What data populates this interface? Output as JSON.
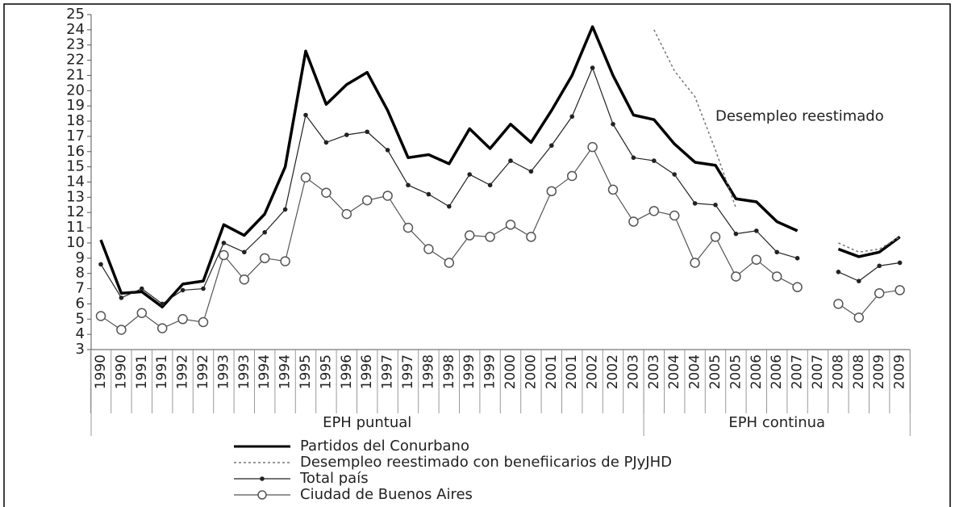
{
  "chart_data": {
    "type": "line",
    "categories": [
      "1990",
      "1990",
      "1991",
      "1991",
      "1992",
      "1992",
      "1993",
      "1993",
      "1994",
      "1994",
      "1995",
      "1995",
      "1996",
      "1996",
      "1997",
      "1997",
      "1998",
      "1998",
      "1999",
      "1999",
      "2000",
      "2000",
      "2001",
      "2001",
      "2002",
      "2002",
      "2003",
      "2003",
      "2004",
      "2004",
      "2005",
      "2005",
      "2006",
      "2006",
      "2007",
      "2007",
      "2008",
      "2008",
      "2009",
      "2009"
    ],
    "groups": [
      {
        "label": "EPH puntual",
        "count": 27
      },
      {
        "label": "EPH continua",
        "count": 13
      }
    ],
    "series": [
      {
        "name": "Partidos del Conurbano",
        "color": "#000000",
        "line_width": 3.5,
        "dashed": false,
        "marker": "none",
        "values": [
          10.2,
          6.7,
          6.8,
          5.8,
          7.3,
          7.5,
          11.2,
          10.5,
          11.9,
          15.0,
          22.6,
          19.1,
          20.4,
          21.2,
          18.7,
          15.6,
          15.8,
          15.2,
          17.5,
          16.2,
          17.8,
          16.6,
          18.7,
          21.0,
          24.2,
          21.0,
          18.4,
          18.1,
          16.5,
          15.3,
          15.1,
          12.9,
          12.7,
          11.4,
          10.8,
          null,
          9.6,
          9.1,
          9.4,
          10.4
        ]
      },
      {
        "name": "Desempleo reestimado con benefiicarios de PJyJHD",
        "color": "#777777",
        "line_width": 1.5,
        "dashed": true,
        "marker": "none",
        "values": [
          null,
          null,
          null,
          null,
          null,
          null,
          null,
          null,
          null,
          null,
          null,
          null,
          null,
          null,
          null,
          null,
          null,
          null,
          null,
          null,
          null,
          null,
          null,
          null,
          null,
          null,
          null,
          24.0,
          21.3,
          19.6,
          16.1,
          12.3,
          null,
          null,
          null,
          null,
          10.0,
          9.4,
          9.6,
          10.4
        ]
      },
      {
        "name": "Total país",
        "color": "#222222",
        "line_width": 1.2,
        "dashed": false,
        "marker": "dot",
        "values": [
          8.6,
          6.4,
          7.0,
          6.0,
          6.9,
          7.0,
          10.0,
          9.4,
          10.7,
          12.2,
          18.4,
          16.6,
          17.1,
          17.3,
          16.1,
          13.8,
          13.2,
          12.4,
          14.5,
          13.8,
          15.4,
          14.7,
          16.4,
          18.3,
          21.5,
          17.8,
          15.6,
          15.4,
          14.5,
          12.6,
          12.5,
          10.6,
          10.8,
          9.4,
          9.0,
          null,
          8.1,
          7.5,
          8.5,
          8.7
        ]
      },
      {
        "name": "Ciudad de Buenos Aires",
        "color": "#555555",
        "line_width": 1.2,
        "dashed": false,
        "marker": "circle",
        "values": [
          5.2,
          4.3,
          5.4,
          4.4,
          5.0,
          4.8,
          9.2,
          7.6,
          9.0,
          8.8,
          14.3,
          13.3,
          11.9,
          12.8,
          13.1,
          11.0,
          9.6,
          8.7,
          10.5,
          10.4,
          11.2,
          10.4,
          13.4,
          14.4,
          16.3,
          13.5,
          11.4,
          12.1,
          11.8,
          8.7,
          10.4,
          7.8,
          8.9,
          7.8,
          7.1,
          null,
          6.0,
          5.1,
          6.7,
          6.9
        ]
      }
    ],
    "annotations": [
      {
        "text": "Desempleo reestimado",
        "x": 30,
        "y": 18.3
      }
    ],
    "ylim": [
      3,
      25
    ],
    "yticks": [
      3,
      4,
      5,
      6,
      7,
      8,
      9,
      10,
      11,
      12,
      13,
      14,
      15,
      16,
      17,
      18,
      19,
      20,
      21,
      22,
      23,
      24,
      25
    ],
    "legend": "bottom"
  }
}
